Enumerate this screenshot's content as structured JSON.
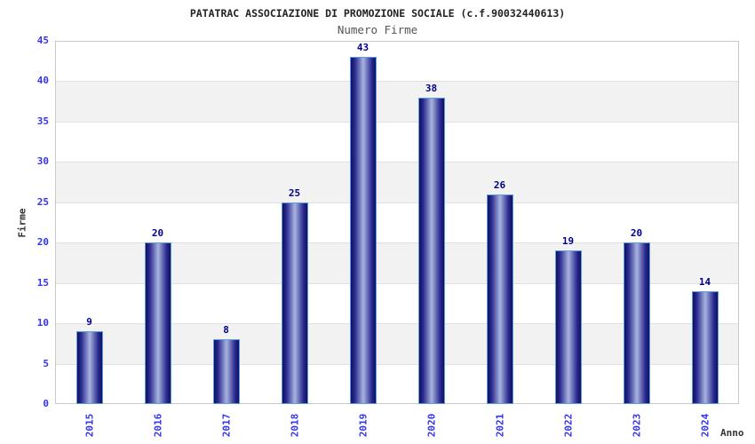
{
  "title": "PATATRAC ASSOCIAZIONE DI PROMOZIONE SOCIALE (c.f.90032440613)",
  "subtitle": "Numero Firme",
  "ylabel": "Firme",
  "xlabel": "Anno",
  "chart_data": {
    "type": "bar",
    "title": "Numero Firme",
    "categories": [
      "2015",
      "2016",
      "2017",
      "2018",
      "2019",
      "2020",
      "2021",
      "2022",
      "2023",
      "2024"
    ],
    "values": [
      9,
      20,
      8,
      25,
      43,
      38,
      26,
      19,
      20,
      14
    ],
    "xlabel": "Anno",
    "ylabel": "Firme",
    "ylim": [
      0,
      45
    ],
    "ytick_step": 5,
    "yticks": [
      0,
      5,
      10,
      15,
      20,
      25,
      30,
      35,
      40,
      45
    ],
    "grid": true,
    "legend": false,
    "band_fill": "alternating horizontal bands every 5 units"
  },
  "colors": {
    "tick_label_blue": "#3333f0",
    "value_label_navy": "#00008b",
    "title_color": "#222222",
    "subtitle_color": "#555555",
    "axis_label_color": "#333333",
    "bar_edge_dark": "#101060",
    "bar_center_light": "#a8b4de",
    "bar_border_lightblue": "#5b9ee0",
    "band_gray": "#f2f2f2",
    "plot_border_gray": "#c9c9c9",
    "gridline_gray": "#e0e0e0"
  }
}
